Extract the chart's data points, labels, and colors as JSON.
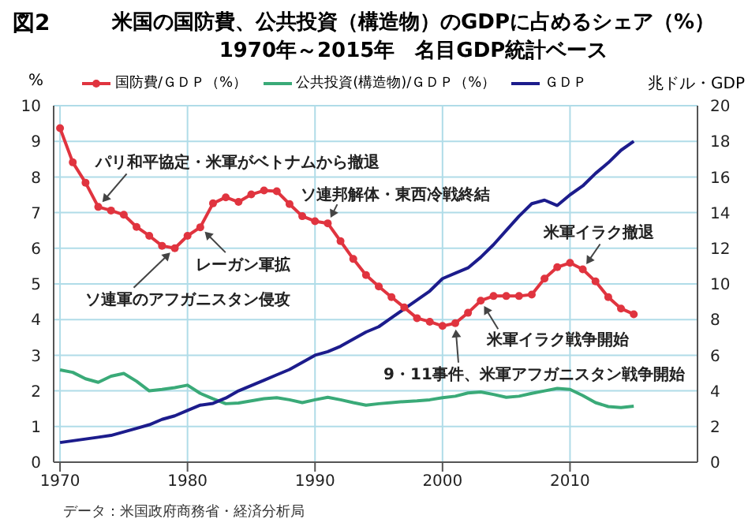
{
  "chart_data": {
    "type": "line",
    "title": "米国の国防費、公共投資（構造物）のGDPに占めるシェア（%）",
    "subtitle": "1970年～2015年　名目GDP統計ベース",
    "ylabel": "%",
    "y2label": "兆ドル・GDP",
    "x": [
      1970,
      1971,
      1972,
      1973,
      1974,
      1975,
      1976,
      1977,
      1978,
      1979,
      1980,
      1981,
      1982,
      1983,
      1984,
      1985,
      1986,
      1987,
      1988,
      1989,
      1990,
      1991,
      1992,
      1993,
      1994,
      1995,
      1996,
      1997,
      1998,
      1999,
      2000,
      2001,
      2002,
      2003,
      2004,
      2005,
      2006,
      2007,
      2008,
      2009,
      2010,
      2011,
      2012,
      2013,
      2014,
      2015
    ],
    "series": [
      {
        "name": "国防費/ＧＤＰ（%）",
        "color": "#e0343f",
        "marker": "circle",
        "values": [
          9.37,
          8.41,
          7.84,
          7.16,
          7.06,
          6.94,
          6.6,
          6.35,
          6.07,
          6.0,
          6.35,
          6.59,
          7.26,
          7.43,
          7.3,
          7.51,
          7.62,
          7.6,
          7.24,
          6.9,
          6.76,
          6.7,
          6.2,
          5.7,
          5.25,
          4.93,
          4.63,
          4.34,
          4.04,
          3.94,
          3.82,
          3.9,
          4.19,
          4.53,
          4.66,
          4.66,
          4.66,
          4.7,
          5.15,
          5.47,
          5.59,
          5.41,
          5.07,
          4.63,
          4.31,
          4.15
        ]
      },
      {
        "name": "公共投資(構造物)/ＧＤＰ（%）",
        "color": "#3aaa78",
        "marker": "none",
        "values": [
          2.59,
          2.52,
          2.34,
          2.24,
          2.41,
          2.49,
          2.27,
          2.0,
          2.04,
          2.09,
          2.16,
          1.93,
          1.78,
          1.64,
          1.66,
          1.72,
          1.78,
          1.81,
          1.75,
          1.67,
          1.75,
          1.82,
          1.75,
          1.67,
          1.6,
          1.64,
          1.67,
          1.7,
          1.72,
          1.75,
          1.81,
          1.85,
          1.94,
          1.97,
          1.9,
          1.82,
          1.85,
          1.93,
          2.0,
          2.07,
          2.04,
          1.87,
          1.67,
          1.56,
          1.53,
          1.57
        ]
      },
      {
        "name": "ＧＤＰ",
        "color": "#1c1c8c",
        "marker": "none",
        "axis": "y2",
        "values": [
          1.1,
          1.2,
          1.3,
          1.4,
          1.5,
          1.7,
          1.9,
          2.1,
          2.4,
          2.6,
          2.9,
          3.2,
          3.3,
          3.6,
          4.0,
          4.3,
          4.6,
          4.9,
          5.2,
          5.6,
          6.0,
          6.2,
          6.5,
          6.9,
          7.3,
          7.6,
          8.1,
          8.6,
          9.1,
          9.6,
          10.3,
          10.6,
          10.9,
          11.5,
          12.2,
          13.0,
          13.8,
          14.5,
          14.7,
          14.4,
          15.0,
          15.5,
          16.2,
          16.8,
          17.5,
          18.0
        ]
      }
    ],
    "xlim": [
      1969.5,
      2020
    ],
    "xticks": [
      1970,
      1980,
      1990,
      2000,
      2010
    ],
    "ylim": [
      0,
      10
    ],
    "yticks": [
      0,
      1,
      2,
      3,
      4,
      5,
      6,
      7,
      8,
      9,
      10
    ],
    "y2lim": [
      0,
      20
    ],
    "y2ticks": [
      0,
      2,
      4,
      6,
      8,
      10,
      12,
      14,
      16,
      18,
      20
    ],
    "grid": true,
    "legend": "top",
    "line_style": "solid",
    "annotations": [
      "図2",
      {
        "text": "パリ和平協定・米軍がベトナムから撤退",
        "x": 1973,
        "y": 7.16
      },
      {
        "text": "レーガン軍拡",
        "x": 1981,
        "y": 6.59
      },
      {
        "text": "ソ連軍のアフガニスタン侵攻",
        "x": 1979,
        "y": 6.0
      },
      {
        "text": "ソ連邦解体・東西冷戦終結",
        "x": 1991,
        "y": 6.7
      },
      {
        "text": "米軍イラク撤退",
        "x": 2011,
        "y": 5.41
      },
      {
        "text": "米軍イラク戦争開始",
        "x": 2003,
        "y": 4.53
      },
      {
        "text": "9・11事件、米軍アフガニスタン戦争開始",
        "x": 2001,
        "y": 3.9
      },
      "データ：米国政府商務省・経済分析局"
    ]
  }
}
